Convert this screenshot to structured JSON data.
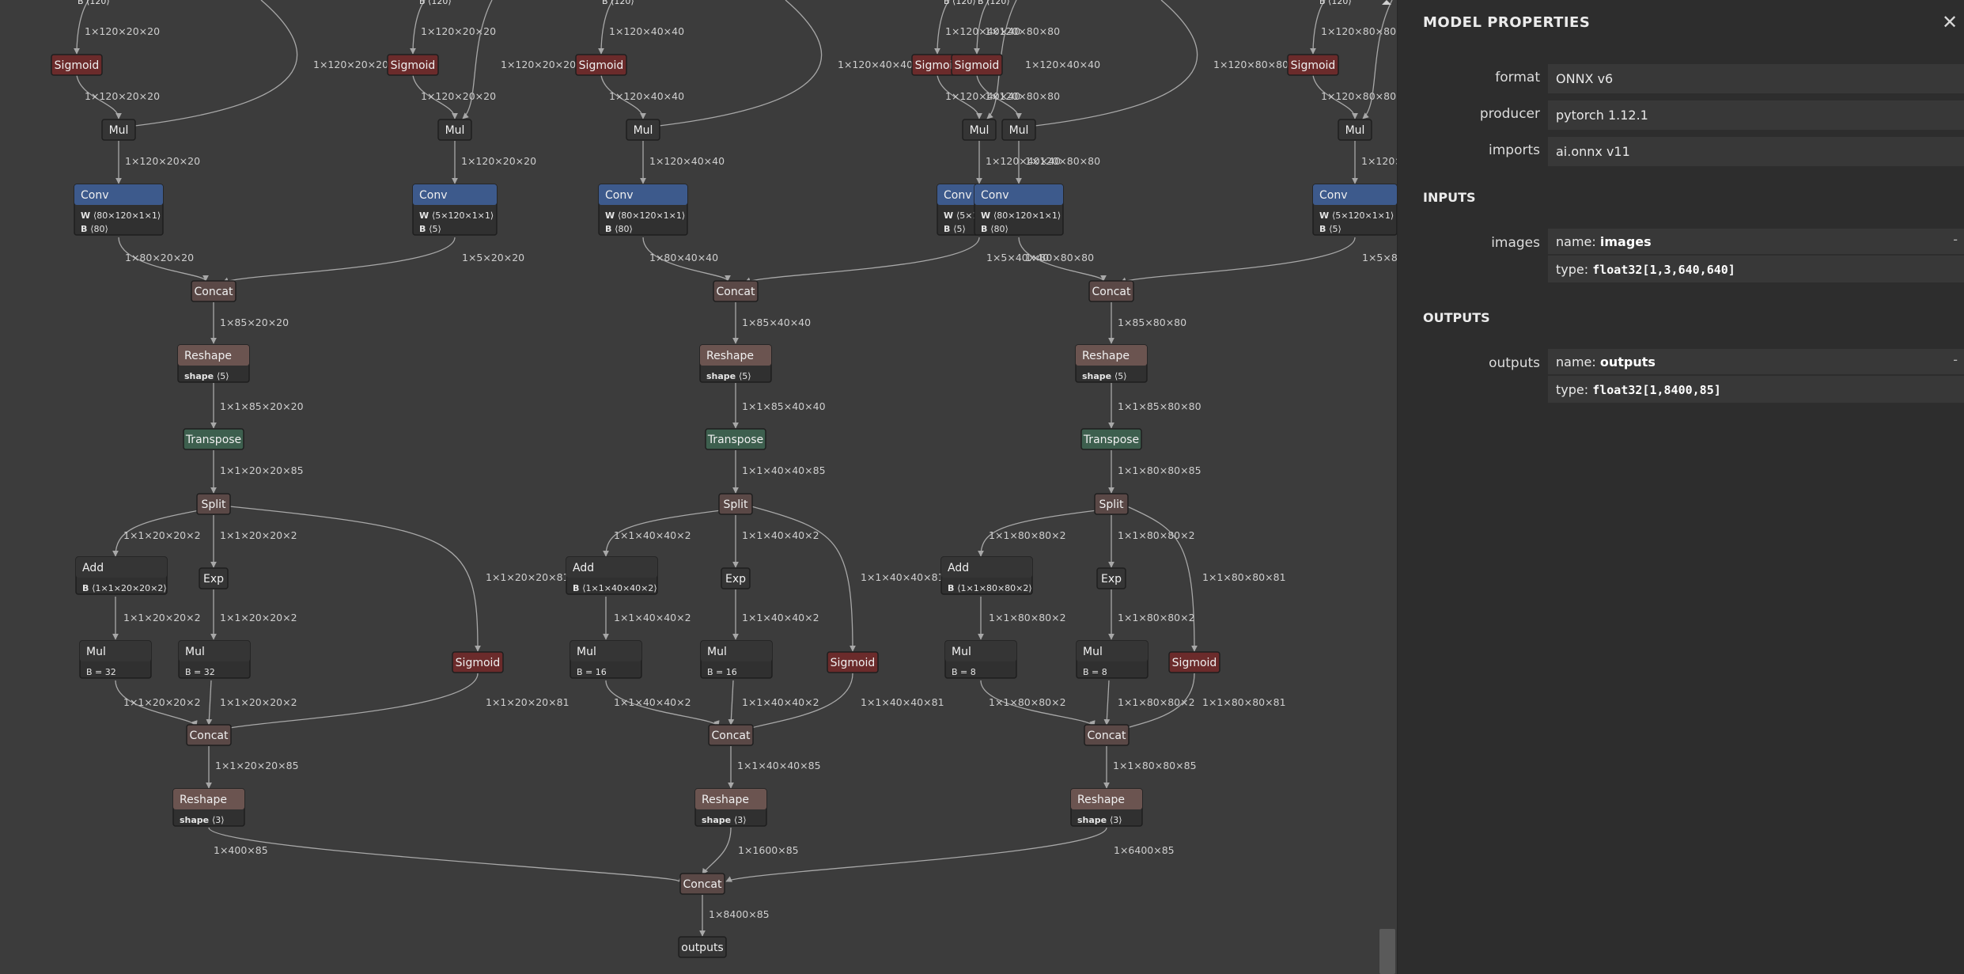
{
  "graph": {
    "output_node": "outputs",
    "final_concat_label": "Concat",
    "final_concat_out": "1×8400×85",
    "heads": [
      {
        "sigmoid_top": "Sigmoid",
        "mul_top": "Mul",
        "in_top": "1×120×20×20",
        "mul_in_left": "1×120×20×20",
        "mul_in_right": "1×120×20×20",
        "mul_out": "1×120×20×20",
        "mul_out2": "1×120×20×20",
        "sig2_in": "1×120×20×20",
        "sig2_out": "1×120×20×20",
        "bypass2": "1×120×20×20",
        "conv_a": {
          "title": "Conv",
          "w": "⟨80×120×1×1⟩",
          "b": "⟨80⟩"
        },
        "conv_b": {
          "title": "Conv",
          "w": "⟨5×120×1×1⟩",
          "b": "⟨5⟩"
        },
        "conv_a_out": "1×80×20×20",
        "conv_b_out": "1×5×20×20",
        "concat1_out": "1×85×20×20",
        "reshape1_out": "1×1×85×20×20",
        "transpose_out": "1×1×20×20×85",
        "split_out_a": "1×1×20×20×2",
        "split_out_b": "1×1×20×20×2",
        "split_out_c": "1×1×20×20×81",
        "add_b": "⟨1×1×20×20×2⟩",
        "add_out": "1×1×20×20×2",
        "exp_out": "1×1×20×20×2",
        "mul1_b": "B = 32",
        "mul2_b": "B = 32",
        "mul1_out": "1×1×20×20×2",
        "mul2_out": "1×1×20×20×2",
        "sig3_out": "1×1×20×20×81",
        "concat2_out": "1×1×20×20×85",
        "reshape2_out": "1×400×85",
        "top_b": "B ⟨120⟩"
      },
      {
        "sigmoid_top": "Sigmoid",
        "mul_top": "Mul",
        "in_top": "1×120×40×40",
        "mul_in_left": "1×120×40×40",
        "mul_in_right": "1×120×40×40",
        "mul_out": "1×120×40×40",
        "mul_out2": "1×120×40×40",
        "sig2_in": "1×120×40×40",
        "sig2_out": "1×120×40×40",
        "bypass2": "1×120×40×40",
        "conv_a": {
          "title": "Conv",
          "w": "⟨80×120×1×1⟩",
          "b": "⟨80⟩"
        },
        "conv_b": {
          "title": "Conv",
          "w": "⟨5×120×1×1⟩",
          "b": "⟨5⟩"
        },
        "conv_a_out": "1×80×40×40",
        "conv_b_out": "1×5×40×40",
        "concat1_out": "1×85×40×40",
        "reshape1_out": "1×1×85×40×40",
        "transpose_out": "1×1×40×40×85",
        "split_out_a": "1×1×40×40×2",
        "split_out_b": "1×1×40×40×2",
        "split_out_c": "1×1×40×40×81",
        "add_b": "⟨1×1×40×40×2⟩",
        "add_out": "1×1×40×40×2",
        "exp_out": "1×1×40×40×2",
        "mul1_b": "B = 16",
        "mul2_b": "B = 16",
        "mul1_out": "1×1×40×40×2",
        "mul2_out": "1×1×40×40×2",
        "sig3_out": "1×1×40×40×81",
        "concat2_out": "1×1×40×40×85",
        "reshape2_out": "1×1600×85",
        "top_b": "B ⟨120⟩"
      },
      {
        "sigmoid_top": "Sigmoid",
        "mul_top": "Mul",
        "in_top": "1×120×80×80",
        "mul_in_left": "1×120×80×80",
        "mul_in_right": "1×120×80×80",
        "mul_out": "1×120×80×80",
        "mul_out2": "1×120×80×80",
        "sig2_in": "1×120×80×80",
        "sig2_out": "1×120×80×80",
        "bypass2": "1×120×80×80",
        "conv_a": {
          "title": "Conv",
          "w": "⟨80×120×1×1⟩",
          "b": "⟨80⟩"
        },
        "conv_b": {
          "title": "Conv",
          "w": "⟨5×120×1×1⟩",
          "b": "⟨5⟩"
        },
        "conv_a_out": "1×80×80×80",
        "conv_b_out": "1×5×80×80",
        "concat1_out": "1×85×80×80",
        "reshape1_out": "1×1×85×80×80",
        "transpose_out": "1×1×80×80×85",
        "split_out_a": "1×1×80×80×2",
        "split_out_b": "1×1×80×80×2",
        "split_out_c": "1×1×80×80×81",
        "add_b": "⟨1×1×80×80×2⟩",
        "add_out": "1×1×80×80×2",
        "exp_out": "1×1×80×80×2",
        "mul1_b": "B = 8",
        "mul2_b": "B = 8",
        "mul1_out": "1×1×80×80×2",
        "mul2_out": "1×1×80×80×2",
        "sig3_out": "1×1×80×80×81",
        "concat2_out": "1×1×80×80×85",
        "reshape2_out": "1×6400×85",
        "top_b": "B ⟨120⟩"
      }
    ],
    "labels": {
      "conv": "Conv",
      "concat": "Concat",
      "reshape": "Reshape",
      "transpose": "Transpose",
      "split": "Split",
      "add": "Add",
      "exp": "Exp",
      "mul": "Mul",
      "sigmoid": "Sigmoid",
      "w": "W",
      "b": "B",
      "shape": "shape",
      "shape5": "⟨5⟩",
      "shape3": "⟨3⟩"
    },
    "colors": {
      "conv": "#3d5a8c",
      "concat": "#5a4846",
      "reshape": "#6b5450",
      "transpose": "#3d5f4e",
      "sigmoid": "#6b2b2b",
      "generic": "#353535",
      "edge": "#a8a8a8",
      "node_border": "#1e1e1e"
    }
  },
  "sidebar": {
    "title": "MODEL PROPERTIES",
    "close_icon": "close-icon",
    "properties": [
      {
        "label": "format",
        "value": "ONNX v6"
      },
      {
        "label": "producer",
        "value": "pytorch 1.12.1"
      },
      {
        "label": "imports",
        "value": "ai.onnx v11"
      }
    ],
    "inputs_heading": "INPUTS",
    "inputs": [
      {
        "label": "images",
        "name_prefix": "name: ",
        "name": "images",
        "type_prefix": "type: ",
        "type": "float32[1,3,640,640]",
        "toggle": "-"
      }
    ],
    "outputs_heading": "OUTPUTS",
    "outputs": [
      {
        "label": "outputs",
        "name_prefix": "name: ",
        "name": "outputs",
        "type_prefix": "type: ",
        "type": "float32[1,8400,85]",
        "toggle": "-"
      }
    ]
  }
}
